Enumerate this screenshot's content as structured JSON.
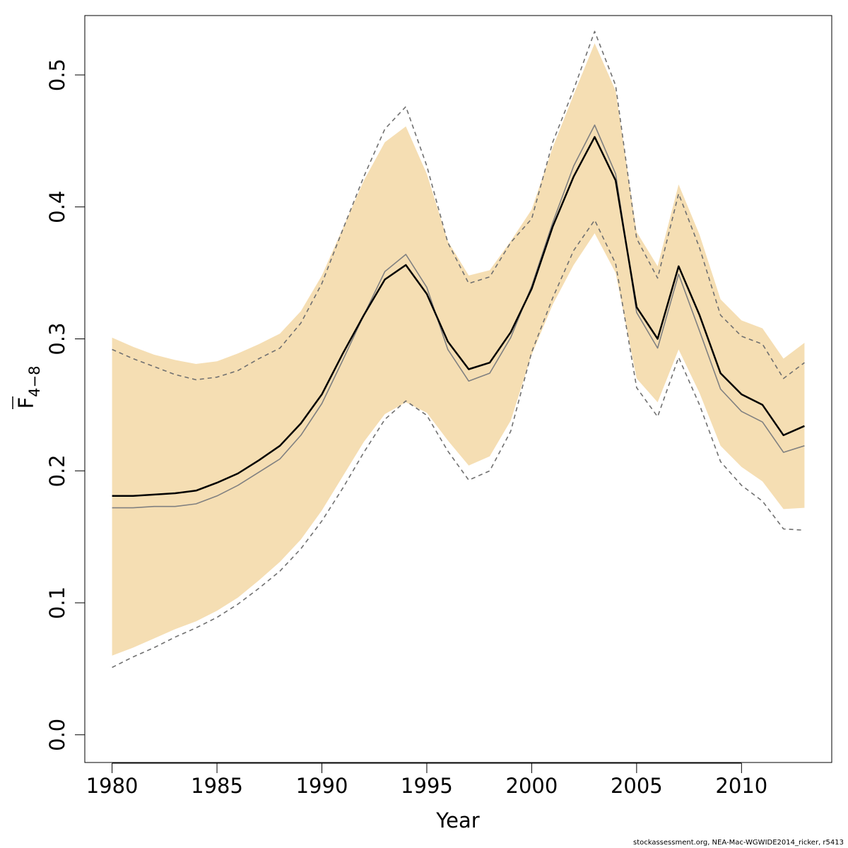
{
  "chart_data": {
    "type": "line",
    "title": "",
    "xlabel": "Year",
    "ylabel": "F",
    "ylabel_subscript": "4−8",
    "xlim": [
      1978.7,
      2014.3
    ],
    "ylim": [
      -0.021,
      0.545
    ],
    "xticks": [
      1980,
      1985,
      1990,
      1995,
      2000,
      2005,
      2010
    ],
    "xtick_labels": [
      "1980",
      "1985",
      "1990",
      "1995",
      "2000",
      "2005",
      "2010"
    ],
    "yticks": [
      0.0,
      0.1,
      0.2,
      0.3,
      0.4,
      0.5
    ],
    "ytick_labels": [
      "0.0",
      "0.1",
      "0.2",
      "0.3",
      "0.4",
      "0.5"
    ],
    "grid": false,
    "x": [
      1980,
      1981,
      1982,
      1983,
      1984,
      1985,
      1986,
      1987,
      1988,
      1989,
      1990,
      1991,
      1992,
      1993,
      1994,
      1995,
      1996,
      1997,
      1998,
      1999,
      2000,
      2001,
      2002,
      2003,
      2004,
      2005,
      2006,
      2007,
      2008,
      2009,
      2010,
      2011,
      2012,
      2013
    ],
    "colors": {
      "band": "#f5deb3",
      "estimate": "#000000",
      "alt_estimate": "#808080",
      "alt_bounds": "#707070"
    },
    "series": [
      {
        "values": [
          0.181,
          0.181,
          0.182,
          0.183,
          0.185,
          0.191,
          0.198,
          0.208,
          0.219,
          0.236,
          0.258,
          0.289,
          0.318,
          0.345,
          0.356,
          0.334,
          0.298,
          0.277,
          0.282,
          0.305,
          0.338,
          0.385,
          0.423,
          0.453,
          0.42,
          0.324,
          0.3,
          0.355,
          0.318,
          0.274,
          0.258,
          0.25,
          0.227,
          0.234
        ]
      },
      {
        "values": [
          0.172,
          0.172,
          0.173,
          0.173,
          0.175,
          0.181,
          0.189,
          0.199,
          0.209,
          0.227,
          0.251,
          0.284,
          0.318,
          0.351,
          0.364,
          0.339,
          0.292,
          0.268,
          0.274,
          0.301,
          0.34,
          0.388,
          0.431,
          0.462,
          0.425,
          0.32,
          0.293,
          0.349,
          0.306,
          0.262,
          0.245,
          0.237,
          0.214,
          0.219
        ]
      },
      {
        "values": [
          0.292,
          0.285,
          0.279,
          0.273,
          0.269,
          0.271,
          0.276,
          0.285,
          0.293,
          0.312,
          0.342,
          0.383,
          0.423,
          0.459,
          0.476,
          0.431,
          0.373,
          0.342,
          0.347,
          0.373,
          0.391,
          0.449,
          0.489,
          0.533,
          0.492,
          0.376,
          0.346,
          0.41,
          0.369,
          0.318,
          0.302,
          0.296,
          0.27,
          0.282
        ]
      },
      {
        "values": [
          0.051,
          0.059,
          0.066,
          0.074,
          0.081,
          0.089,
          0.099,
          0.111,
          0.124,
          0.141,
          0.162,
          0.187,
          0.214,
          0.239,
          0.253,
          0.242,
          0.215,
          0.193,
          0.2,
          0.23,
          0.29,
          0.331,
          0.367,
          0.39,
          0.357,
          0.263,
          0.241,
          0.286,
          0.25,
          0.207,
          0.189,
          0.177,
          0.156,
          0.155
        ]
      }
    ],
    "band": {
      "upper": [
        0.301,
        0.294,
        0.288,
        0.284,
        0.281,
        0.283,
        0.289,
        0.296,
        0.304,
        0.321,
        0.348,
        0.384,
        0.42,
        0.449,
        0.461,
        0.425,
        0.374,
        0.348,
        0.352,
        0.374,
        0.398,
        0.445,
        0.485,
        0.524,
        0.488,
        0.381,
        0.355,
        0.417,
        0.379,
        0.33,
        0.314,
        0.308,
        0.285,
        0.297
      ],
      "lower": [
        0.06,
        0.066,
        0.073,
        0.08,
        0.086,
        0.094,
        0.104,
        0.117,
        0.131,
        0.148,
        0.17,
        0.196,
        0.222,
        0.243,
        0.252,
        0.244,
        0.223,
        0.204,
        0.211,
        0.238,
        0.288,
        0.326,
        0.356,
        0.38,
        0.35,
        0.27,
        0.252,
        0.292,
        0.259,
        0.219,
        0.203,
        0.192,
        0.171,
        0.172
      ]
    }
  },
  "footer_text": "stockassessment.org, NEA-Mac-WGWIDE2014_ricker, r5413"
}
